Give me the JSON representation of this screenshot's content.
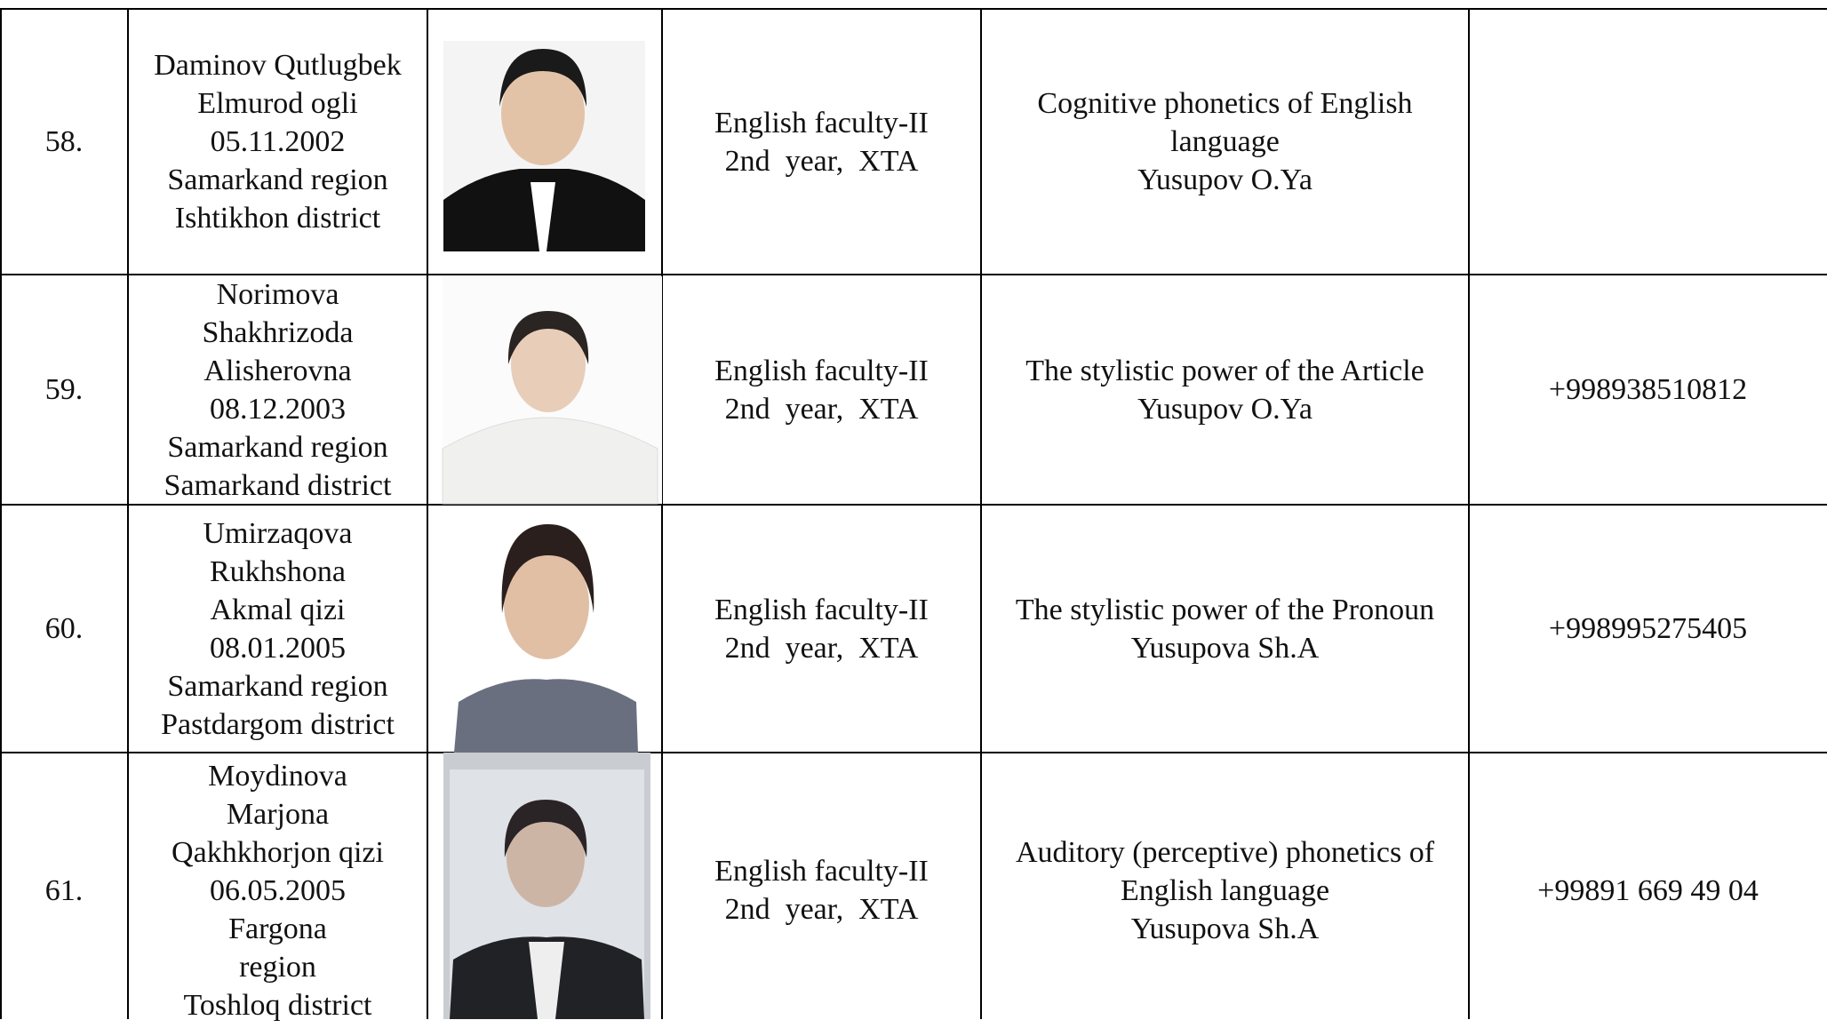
{
  "table": {
    "rows": [
      {
        "number": "58.",
        "name": [
          "Daminov Qutlugbek",
          "Elmurod ogli",
          "05.11.2002",
          "Samarkand region",
          "Ishtikhon district"
        ],
        "group": [
          "English faculty-II",
          "2nd  year,  XTA"
        ],
        "topic": [
          "Cognitive phonetics of English",
          "language",
          "Yusupov O.Ya"
        ]
      },
      {
        "number": "59.",
        "name": [
          "Norimova",
          "Shakhrizoda",
          "Alisherovna",
          "08.12.2003",
          "Samarkand region",
          "Samarkand district"
        ],
        "group": [
          "English faculty-II",
          "2nd  year,  XTA"
        ],
        "topic": [
          "The stylistic power of the Article",
          "Yusupov O.Ya"
        ],
        "phone": "+998938510812"
      },
      {
        "number": "60.",
        "name": [
          "Umirzaqova",
          "Rukhshona",
          "Akmal qizi",
          "08.01.2005",
          "Samarkand region",
          "Pastdargom district"
        ],
        "group": [
          "English faculty-II",
          "2nd  year,  XTA"
        ],
        "topic": [
          "The stylistic power of the Pronoun",
          "Yusupova Sh.A"
        ],
        "phone": "+998995275405"
      },
      {
        "number": "61.",
        "name": [
          "Moydinova",
          "Marjona",
          "Qakhkhorjon qizi",
          "06.05.2005",
          "Fargona",
          "region",
          "Toshloq district"
        ],
        "group": [
          "English faculty-II",
          "2nd  year,  XTA"
        ],
        "topic": [
          "Auditory (perceptive) phonetics of",
          "English language",
          "Yusupova Sh.A"
        ],
        "phone": "+99891 669 49 04"
      }
    ]
  }
}
